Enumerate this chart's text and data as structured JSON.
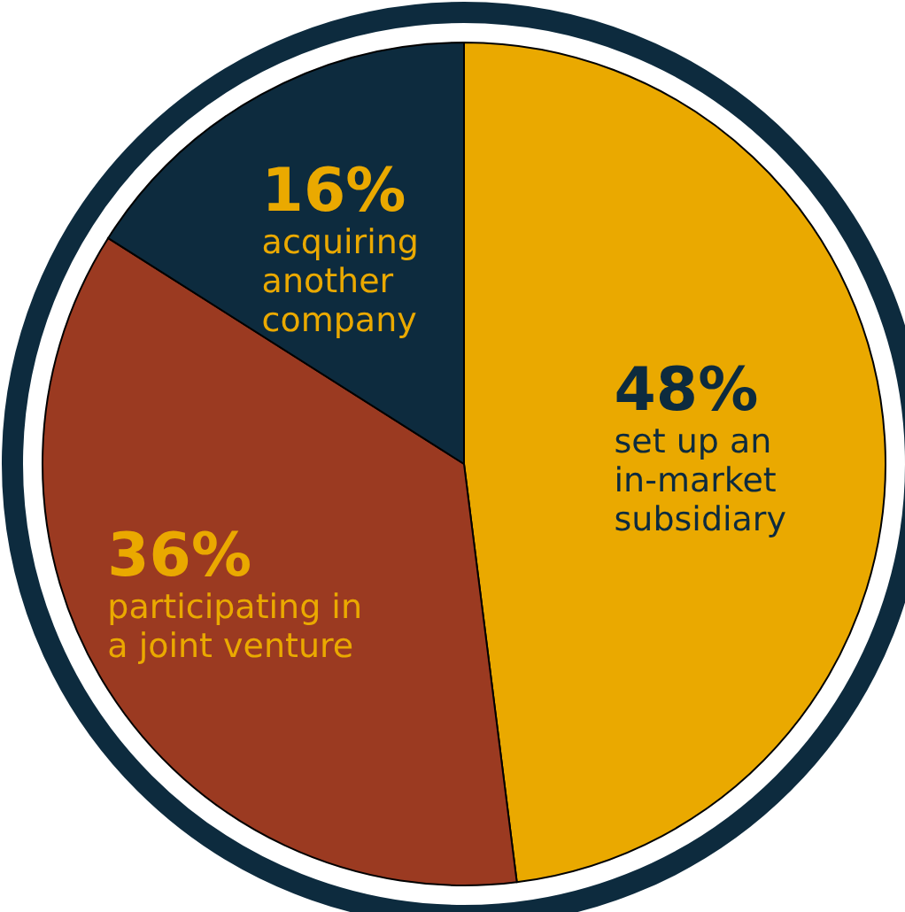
{
  "chart_data": {
    "type": "pie",
    "categories": [
      "set up an\nin-market\nsubsidiary",
      "participating in\na joint venture",
      "acquiring\nanother\ncompany"
    ],
    "values": [
      48,
      36,
      16
    ],
    "colors": [
      "#eaa900",
      "#9b3a21",
      "#0d2b3e"
    ],
    "value_labels": [
      "48%",
      "36%",
      "16%"
    ]
  }
}
